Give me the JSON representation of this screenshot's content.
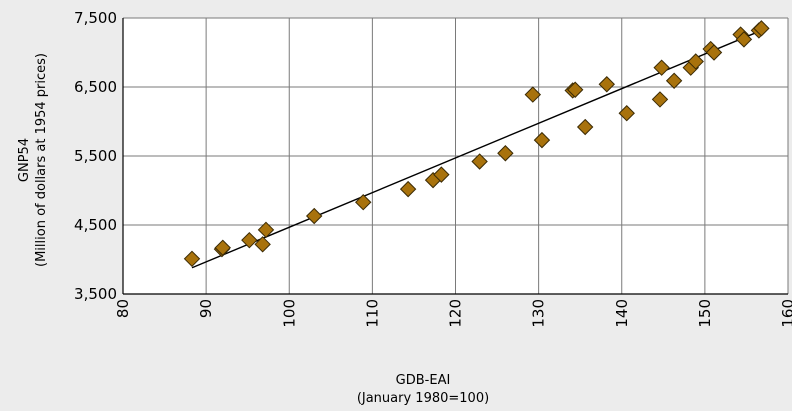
{
  "chart_data": {
    "type": "scatter",
    "xlabel": [
      "GDB-EAI",
      "(January 1980=100)"
    ],
    "ylabel": [
      "GNP54",
      "(Million of dollars at 1954 prices)"
    ],
    "xlim": [
      80,
      160
    ],
    "ylim": [
      3500,
      7500
    ],
    "xticks": [
      "80",
      "90",
      "100",
      "110",
      "120",
      "130",
      "140",
      "150",
      "160"
    ],
    "yticks": [
      "3,500",
      "4,500",
      "5,500",
      "6,500",
      "7,500"
    ],
    "grid": true,
    "legend": "none",
    "colors": {
      "marker_fill": "#a8720c",
      "marker_stroke": "#3a2a05",
      "trendline": "#000000"
    },
    "series": [
      {
        "marker": "diamond",
        "points": [
          [
            88.3,
            4010
          ],
          [
            91.9,
            4150
          ],
          [
            92.0,
            4170
          ],
          [
            95.2,
            4280
          ],
          [
            96.8,
            4220
          ],
          [
            97.2,
            4430
          ],
          [
            103.0,
            4630
          ],
          [
            108.9,
            4830
          ],
          [
            114.3,
            5020
          ],
          [
            117.3,
            5150
          ],
          [
            118.3,
            5230
          ],
          [
            122.9,
            5420
          ],
          [
            126.0,
            5540
          ],
          [
            129.3,
            6390
          ],
          [
            130.4,
            5730
          ],
          [
            134.1,
            6450
          ],
          [
            134.4,
            6460
          ],
          [
            135.6,
            5920
          ],
          [
            138.2,
            6540
          ],
          [
            140.6,
            6120
          ],
          [
            144.6,
            6320
          ],
          [
            144.8,
            6780
          ],
          [
            146.3,
            6590
          ],
          [
            148.3,
            6780
          ],
          [
            148.9,
            6870
          ],
          [
            150.7,
            7050
          ],
          [
            151.1,
            7000
          ],
          [
            154.3,
            7260
          ],
          [
            154.7,
            7190
          ],
          [
            156.5,
            7320
          ],
          [
            156.8,
            7350
          ]
        ]
      }
    ],
    "trendline": {
      "x": [
        88.3,
        156.8
      ],
      "y": [
        3880,
        7320
      ]
    }
  }
}
